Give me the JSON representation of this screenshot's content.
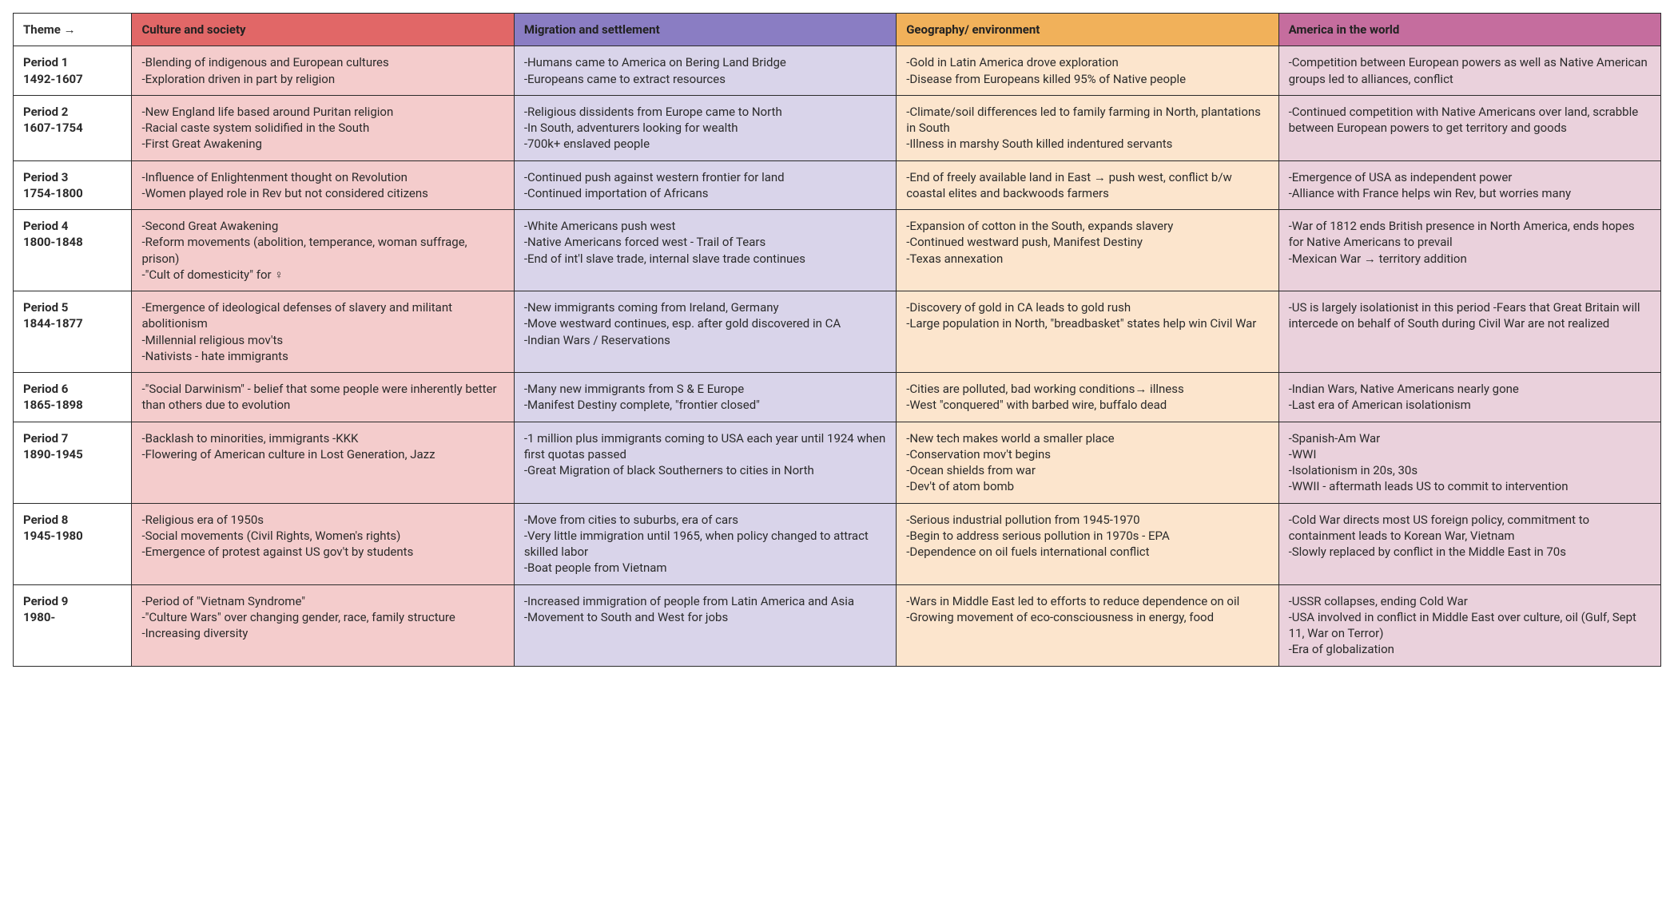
{
  "corner_label": "Theme →",
  "themes": [
    {
      "id": "culture",
      "label": "Culture and society",
      "header_bg": "#e16767",
      "cell_bg": "#f4cccc"
    },
    {
      "id": "migration",
      "label": "Migration and settlement",
      "header_bg": "#8a7dc3",
      "cell_bg": "#d9d4ea"
    },
    {
      "id": "geography",
      "label": "Geography/ environment",
      "header_bg": "#f1b15a",
      "cell_bg": "#fce5cd"
    },
    {
      "id": "world",
      "label": "America in the world",
      "header_bg": "#c56d9e",
      "cell_bg": "#ead1dc"
    }
  ],
  "periods": [
    {
      "name_line1": "Period 1",
      "name_line2": "1492-1607",
      "cells": {
        "culture": [
          "-Blending of indigenous and European cultures",
          "-Exploration driven in part by religion"
        ],
        "migration": [
          "-Humans came to America on Bering Land Bridge",
          "-Europeans came to extract resources"
        ],
        "geography": [
          "-Gold in Latin America drove exploration",
          "-Disease from Europeans killed 95% of Native people"
        ],
        "world": [
          "-Competition between European powers as well as Native American groups led to alliances, conflict"
        ]
      }
    },
    {
      "name_line1": "Period 2",
      "name_line2": "1607-1754",
      "cells": {
        "culture": [
          "-New England life based around Puritan religion",
          "-Racial caste system solidified in the South",
          "-First Great Awakening"
        ],
        "migration": [
          "-Religious dissidents from Europe came to North",
          "-In South, adventurers looking for wealth",
          "-700k+ enslaved people"
        ],
        "geography": [
          "-Climate/soil differences led to family farming in North, plantations in South",
          "-Illness in marshy South killed indentured servants"
        ],
        "world": [
          "-Continued competition with Native Americans over land, scrabble between European powers to get territory and goods"
        ]
      }
    },
    {
      "name_line1": "Period 3",
      "name_line2": "1754-1800",
      "cells": {
        "culture": [
          "-Influence of Enlightenment thought on Revolution",
          "-Women played role in Rev but not considered citizens"
        ],
        "migration": [
          "-Continued push against western frontier for land",
          "-Continued importation of Africans"
        ],
        "geography": [
          "-End of freely available land in East → push west, conflict b/w coastal elites and backwoods farmers"
        ],
        "world": [
          "-Emergence of USA as independent power",
          "-Alliance with France helps win Rev, but worries many"
        ]
      }
    },
    {
      "name_line1": "Period 4",
      "name_line2": "1800-1848",
      "cells": {
        "culture": [
          "-Second Great Awakening",
          "-Reform movements (abolition, temperance, woman suffrage, prison)",
          "-\"Cult of domesticity\" for ♀"
        ],
        "migration": [
          "-White Americans push west",
          "-Native Americans forced west - Trail of Tears",
          "-End of int'l slave trade, internal slave trade continues"
        ],
        "geography": [
          "-Expansion of cotton in the South, expands slavery",
          "-Continued westward push, Manifest Destiny",
          "-Texas annexation"
        ],
        "world": [
          "-War of 1812 ends British presence in North America, ends hopes for Native Americans to prevail",
          "-Mexican War → territory addition"
        ]
      }
    },
    {
      "name_line1": "Period 5",
      "name_line2": "1844-1877",
      "cells": {
        "culture": [
          "-Emergence of ideological defenses of slavery and militant abolitionism",
          "-Millennial religious mov'ts",
          "-Nativists - hate immigrants"
        ],
        "migration": [
          "-New immigrants coming from Ireland, Germany",
          "-Move westward continues, esp. after gold discovered in CA",
          "-Indian Wars / Reservations"
        ],
        "geography": [
          "-Discovery of gold in CA leads to gold rush",
          "-Large population in North, \"breadbasket\" states help win Civil War"
        ],
        "world": [
          "-US is largely isolationist in this period -Fears that Great Britain will intercede on behalf of South during Civil War are not realized"
        ]
      }
    },
    {
      "name_line1": "Period 6",
      "name_line2": "1865-1898",
      "cells": {
        "culture": [
          "-\"Social Darwinism\" - belief that some people were inherently better than others due to evolution"
        ],
        "migration": [
          "-Many new immigrants from S & E Europe",
          "-Manifest Destiny complete, \"frontier closed\""
        ],
        "geography": [
          "-Cities are polluted, bad working conditions→ illness",
          "-West \"conquered\" with barbed wire, buffalo dead"
        ],
        "world": [
          "-Indian Wars, Native Americans nearly gone",
          "-Last era of American isolationism"
        ]
      }
    },
    {
      "name_line1": "Period 7",
      "name_line2": "1890-1945",
      "cells": {
        "culture": [
          "-Backlash to minorities, immigrants -KKK",
          "-Flowering of American culture in Lost Generation, Jazz"
        ],
        "migration": [
          "-1 million plus immigrants coming to USA each year until 1924 when first quotas passed",
          "-Great Migration of black Southerners to cities in North"
        ],
        "geography": [
          "-New tech makes world a smaller place",
          "-Conservation mov't begins",
          "-Ocean shields from war",
          "-Dev't of atom bomb"
        ],
        "world": [
          "-Spanish-Am War",
          "-WWI",
          "-Isolationism in 20s, 30s",
          "-WWII - aftermath leads US to commit to intervention"
        ]
      }
    },
    {
      "name_line1": "Period 8",
      "name_line2": "1945-1980",
      "cells": {
        "culture": [
          "-Religious era of 1950s",
          "-Social movements (Civil Rights, Women's rights)",
          "-Emergence of protest against US gov't by students"
        ],
        "migration": [
          "-Move from cities to suburbs, era of cars",
          "-Very little immigration until 1965, when policy changed to attract skilled labor",
          "-Boat people from Vietnam"
        ],
        "geography": [
          "-Serious industrial pollution from 1945-1970",
          "-Begin to address serious pollution in 1970s - EPA",
          "-Dependence on oil fuels international conflict"
        ],
        "world": [
          "-Cold War directs most US foreign policy, commitment to containment leads to Korean War, Vietnam",
          "-Slowly replaced by conflict in the Middle East in 70s"
        ]
      }
    },
    {
      "name_line1": "Period 9",
      "name_line2": "1980-",
      "cells": {
        "culture": [
          "-Period of \"Vietnam Syndrome\"",
          "-\"Culture Wars\" over changing gender, race, family structure",
          "-Increasing diversity"
        ],
        "migration": [
          "-Increased immigration of people from Latin America and Asia",
          "-Movement to South and West for jobs"
        ],
        "geography": [
          "-Wars in Middle East led to efforts to reduce dependence on oil",
          "-Growing movement of eco-consciousness in energy, food"
        ],
        "world": [
          "-USSR collapses, ending Cold War",
          "-USA involved in conflict in Middle East over culture, oil (Gulf, Sept 11, War on Terror)",
          "-Era of globalization"
        ]
      }
    }
  ]
}
